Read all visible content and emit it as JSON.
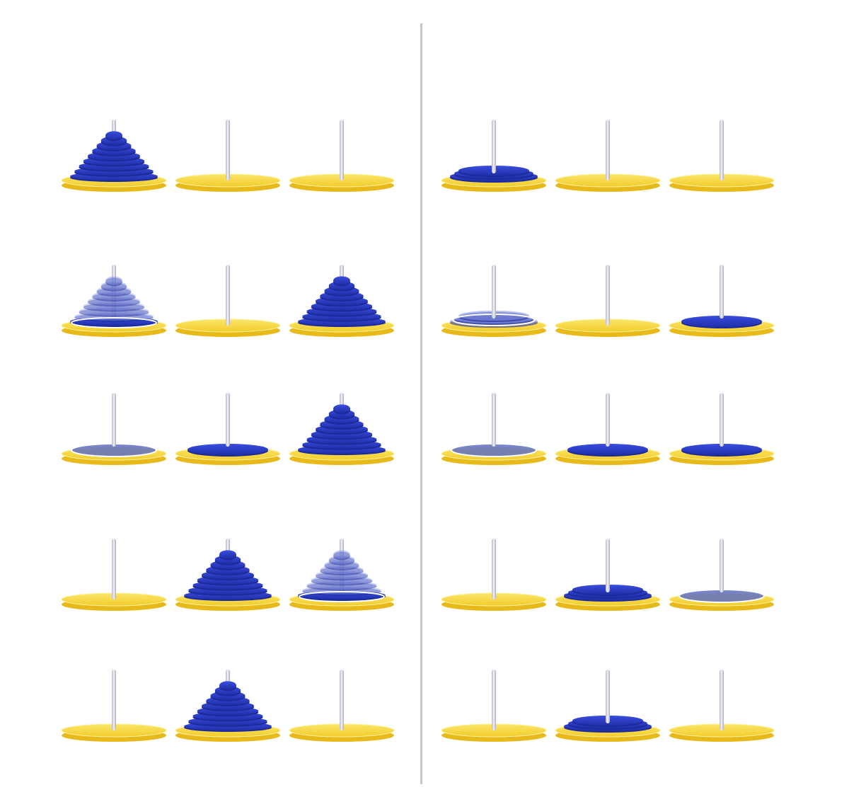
{
  "colors": {
    "background": "#ffffff",
    "divider": "#c8c8c8",
    "base_top": "#f7d93a",
    "base_side": "#e8b91a",
    "base_rim": "#fff2a0",
    "peg": "#d9d9e3",
    "peg_shade": "#a9a9bb",
    "disk": "#2d3fcc",
    "disk_dark": "#1d2a99",
    "disk_light": "#4c5ce0",
    "ghost": "#8a98e6",
    "ghost_flat": "#5f6fbf",
    "outline": "#ffffff"
  },
  "panels": [
    {
      "name": "left",
      "rows": [
        {
          "pegs": [
            {
              "stack": "tall",
              "state": "solid"
            },
            {
              "stack": "none",
              "state": "solid"
            },
            {
              "stack": "none",
              "state": "solid"
            }
          ]
        },
        {
          "pegs": [
            {
              "stack": "tall",
              "state": "ghost"
            },
            {
              "stack": "none",
              "state": "solid"
            },
            {
              "stack": "tall",
              "state": "solid"
            }
          ]
        },
        {
          "pegs": [
            {
              "stack": "flat",
              "state": "ghost"
            },
            {
              "stack": "flat",
              "state": "solid"
            },
            {
              "stack": "tall",
              "state": "solid"
            }
          ]
        },
        {
          "pegs": [
            {
              "stack": "none",
              "state": "solid"
            },
            {
              "stack": "tall",
              "state": "solid"
            },
            {
              "stack": "tall",
              "state": "ghost"
            }
          ]
        },
        {
          "pegs": [
            {
              "stack": "none",
              "state": "solid"
            },
            {
              "stack": "tall",
              "state": "solid"
            },
            {
              "stack": "none",
              "state": "solid"
            }
          ]
        }
      ]
    },
    {
      "name": "right",
      "rows": [
        {
          "pegs": [
            {
              "stack": "short",
              "state": "solid"
            },
            {
              "stack": "none",
              "state": "solid"
            },
            {
              "stack": "none",
              "state": "solid"
            }
          ]
        },
        {
          "pegs": [
            {
              "stack": "short",
              "state": "ghost"
            },
            {
              "stack": "none",
              "state": "solid"
            },
            {
              "stack": "flat",
              "state": "solid"
            }
          ]
        },
        {
          "pegs": [
            {
              "stack": "flat",
              "state": "ghost"
            },
            {
              "stack": "flat",
              "state": "solid"
            },
            {
              "stack": "flat",
              "state": "solid"
            }
          ]
        },
        {
          "pegs": [
            {
              "stack": "none",
              "state": "solid"
            },
            {
              "stack": "short",
              "state": "solid"
            },
            {
              "stack": "flat",
              "state": "ghost"
            }
          ]
        },
        {
          "pegs": [
            {
              "stack": "none",
              "state": "solid"
            },
            {
              "stack": "short",
              "state": "solid"
            },
            {
              "stack": "none",
              "state": "solid"
            }
          ]
        }
      ]
    }
  ]
}
